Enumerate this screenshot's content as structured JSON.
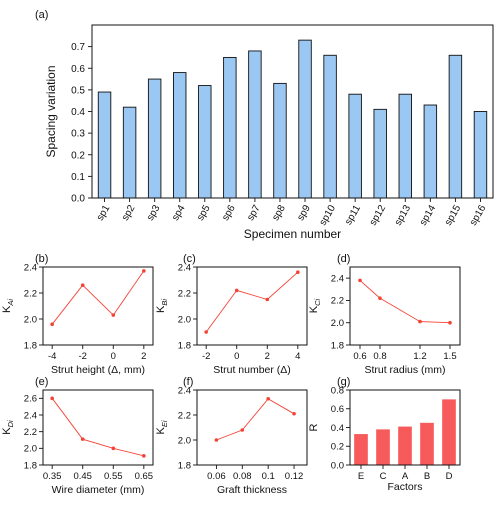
{
  "panels": [
    {
      "letter": "(a)",
      "chart_data": {
        "type": "bar",
        "title": "",
        "xlabel": "Specimen number",
        "ylabel": "Spacing variation",
        "categories": [
          "sp1",
          "sp2",
          "sp3",
          "sp4",
          "sp5",
          "sp6",
          "sp7",
          "sp8",
          "sp9",
          "sp10",
          "sp11",
          "sp12",
          "sp13",
          "sp14",
          "sp15",
          "sp16"
        ],
        "values": [
          0.49,
          0.42,
          0.55,
          0.58,
          0.52,
          0.65,
          0.68,
          0.53,
          0.73,
          0.66,
          0.48,
          0.41,
          0.48,
          0.43,
          0.66,
          0.4
        ],
        "ylim": [
          0,
          0.8
        ],
        "yticks": [
          "0.0",
          "0.1",
          "0.2",
          "0.3",
          "0.4",
          "0.5",
          "0.6",
          "0.7"
        ],
        "bar_color": "#9bc8f2"
      }
    },
    {
      "letter": "(b)",
      "chart_data": {
        "type": "line",
        "xlabel": "Strut height (Δ, mm)",
        "ylabel_main": "K",
        "ylabel_sub": "Ai",
        "x": [
          -4,
          -2,
          0,
          2
        ],
        "values": [
          1.96,
          2.26,
          2.03,
          2.37
        ],
        "xlim": [
          -4.6,
          2.6
        ],
        "ylim": [
          1.8,
          2.4
        ],
        "xticks": [
          -4,
          -2,
          0,
          2
        ],
        "xtick_labels": [
          "-4",
          "-2",
          "0",
          "2"
        ],
        "yticks": [
          1.8,
          2.0,
          2.2,
          2.4
        ],
        "ytick_labels": [
          "1.8",
          "2.0",
          "2.2",
          "2.4"
        ],
        "line_color": "#f44336"
      }
    },
    {
      "letter": "(c)",
      "chart_data": {
        "type": "line",
        "xlabel": "Strut number (Δ)",
        "ylabel_main": "K",
        "ylabel_sub": "Bi",
        "x": [
          -2,
          0,
          2,
          4
        ],
        "values": [
          1.9,
          2.22,
          2.15,
          2.36
        ],
        "xlim": [
          -2.6,
          4.6
        ],
        "ylim": [
          1.8,
          2.4
        ],
        "xticks": [
          -2,
          0,
          2,
          4
        ],
        "xtick_labels": [
          "-2",
          "0",
          "2",
          "4"
        ],
        "yticks": [
          1.8,
          2.0,
          2.2,
          2.4
        ],
        "ytick_labels": [
          "1.8",
          "2.0",
          "2.2",
          "2.4"
        ],
        "line_color": "#f44336"
      }
    },
    {
      "letter": "(d)",
      "chart_data": {
        "type": "line",
        "xlabel": "Strut radius (mm)",
        "ylabel_main": "K",
        "ylabel_sub": "Ci",
        "x": [
          0.6,
          0.8,
          1.2,
          1.5
        ],
        "values": [
          2.38,
          2.22,
          2.01,
          2.0
        ],
        "xlim": [
          0.5,
          1.6
        ],
        "ylim": [
          1.8,
          2.5
        ],
        "xticks": [
          0.6,
          0.8,
          1.2,
          1.5
        ],
        "xtick_labels": [
          "0.6",
          "0.8",
          "1.2",
          "1.5"
        ],
        "yticks": [
          1.8,
          2.0,
          2.2,
          2.4
        ],
        "ytick_labels": [
          "1.8",
          "2.0",
          "2.2",
          "2.4"
        ],
        "line_color": "#f44336"
      }
    },
    {
      "letter": "(e)",
      "chart_data": {
        "type": "line",
        "xlabel": "Wire diameter (mm)",
        "ylabel_main": "K",
        "ylabel_sub": "Di",
        "x": [
          0.35,
          0.45,
          0.55,
          0.65
        ],
        "values": [
          2.6,
          2.11,
          2.0,
          1.91
        ],
        "xlim": [
          0.32,
          0.68
        ],
        "ylim": [
          1.8,
          2.7
        ],
        "xticks": [
          0.35,
          0.45,
          0.55,
          0.65
        ],
        "xtick_labels": [
          "0.35",
          "0.45",
          "0.55",
          "0.65"
        ],
        "yticks": [
          1.8,
          2.0,
          2.2,
          2.4,
          2.6
        ],
        "ytick_labels": [
          "1.8",
          "2.0",
          "2.2",
          "2.4",
          "2.6"
        ],
        "line_color": "#f44336"
      }
    },
    {
      "letter": "(f)",
      "chart_data": {
        "type": "line",
        "xlabel": "Graft thickness",
        "ylabel_main": "K",
        "ylabel_sub": "Ei",
        "x": [
          0.06,
          0.08,
          0.1,
          0.12
        ],
        "values": [
          2.0,
          2.08,
          2.33,
          2.21
        ],
        "xlim": [
          0.045,
          0.13
        ],
        "ylim": [
          1.8,
          2.4
        ],
        "xticks": [
          0.06,
          0.08,
          0.1,
          0.12
        ],
        "xtick_labels": [
          "0.06",
          "0.08",
          "0.1",
          "0.12"
        ],
        "yticks": [
          1.8,
          2.0,
          2.2,
          2.4
        ],
        "ytick_labels": [
          "1.8",
          "2.0",
          "2.2",
          "2.4"
        ],
        "line_color": "#f44336"
      }
    },
    {
      "letter": "(g)",
      "chart_data": {
        "type": "bar",
        "xlabel": "Factors",
        "ylabel_main": "R",
        "ylabel_sub": "",
        "categories": [
          "E",
          "C",
          "A",
          "B",
          "D"
        ],
        "values": [
          0.33,
          0.38,
          0.41,
          0.45,
          0.7
        ],
        "ylim": [
          0,
          0.8
        ],
        "yticks": [
          0.0,
          0.2,
          0.4,
          0.6,
          0.8
        ],
        "ytick_labels": [
          "0.0",
          "0.2",
          "0.4",
          "0.6",
          "0.8"
        ],
        "bar_color": "#f75a5a"
      }
    }
  ]
}
